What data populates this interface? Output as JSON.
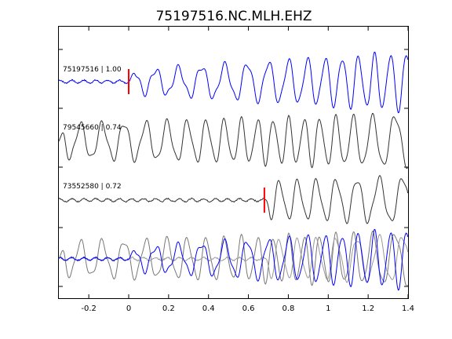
{
  "chart_data": {
    "type": "line",
    "title": "75197516.NC.MLH.EHZ",
    "xlabel": "",
    "ylabel": "",
    "xlim": [
      -0.35,
      1.4
    ],
    "x_ticks": [
      -0.2,
      0,
      0.2,
      0.4,
      0.6,
      0.8,
      1,
      1.2,
      1.4
    ],
    "x_tick_labels": [
      "-0.2",
      "0",
      "0.2",
      "0.4",
      "0.6",
      "0.8",
      "1",
      "1.2",
      "1.4"
    ],
    "grid": false,
    "series": [
      {
        "name": "75197516 | 1.00",
        "color": "#0000ff",
        "pick_time": 0.0,
        "pick_color": "#ff0000",
        "noise_until": 0.0,
        "x_end": 1.4,
        "period": 0.105,
        "start_amp": 0.35,
        "end_amp": 0.95
      },
      {
        "name": "79545660 | 0.74",
        "color": "#333333",
        "noise_until": -0.35,
        "x_end": 1.4,
        "period": 0.1,
        "start_amp": 0.55,
        "end_amp": 0.85
      },
      {
        "name": "73552580 | 0.72",
        "color": "#333333",
        "pick_time": 0.68,
        "pick_color": "#ff0000",
        "noise_until": 0.68,
        "x_end": 1.4,
        "period": 0.098,
        "start_amp": 0.6,
        "end_amp": 0.75
      }
    ],
    "overlay": {
      "description": "all traces superimposed",
      "colors": [
        "#777777",
        "#999999",
        "#0000ff"
      ]
    }
  }
}
